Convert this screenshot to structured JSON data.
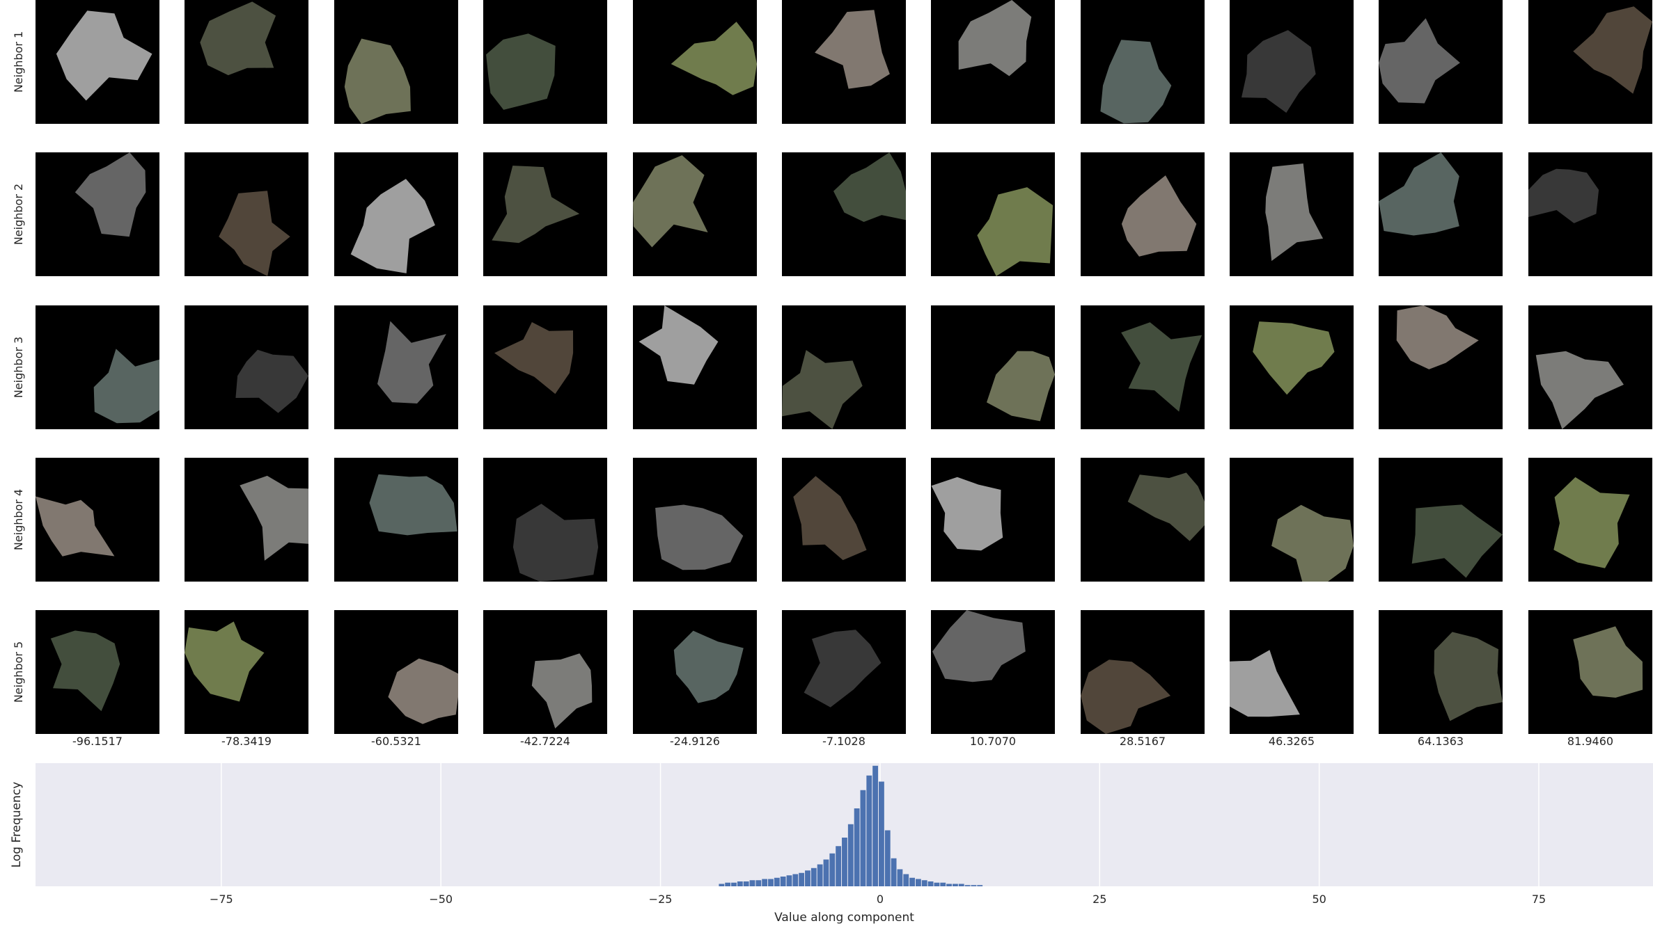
{
  "neighbor_grid": {
    "row_labels": [
      "Neighbor 1",
      "Neighbor 2",
      "Neighbor 3",
      "Neighbor 4",
      "Neighbor 5"
    ],
    "column_values": [
      "-96.1517",
      "-78.3419",
      "-60.5321",
      "-42.7224",
      "-24.9126",
      "-7.1028",
      "10.7070",
      "28.5167",
      "46.3265",
      "64.1363",
      "81.9460"
    ]
  },
  "chart_data": {
    "type": "bar",
    "xlabel": "Value along component",
    "ylabel": "Log Frequency",
    "xlim": [
      -96.1517,
      88
    ],
    "x_ticks": [
      -75,
      -50,
      -25,
      0,
      25,
      50,
      75
    ],
    "x_tick_labels": [
      "−75",
      "−50",
      "−25",
      "0",
      "25",
      "50",
      "75"
    ],
    "grid": true,
    "background": "#eaeaf2",
    "bar_color": "#4c72b0",
    "bins": [
      {
        "x": -18.0,
        "y": 0.02
      },
      {
        "x": -17.3,
        "y": 0.03
      },
      {
        "x": -16.6,
        "y": 0.03
      },
      {
        "x": -15.9,
        "y": 0.04
      },
      {
        "x": -15.2,
        "y": 0.04
      },
      {
        "x": -14.5,
        "y": 0.05
      },
      {
        "x": -13.8,
        "y": 0.05
      },
      {
        "x": -13.1,
        "y": 0.06
      },
      {
        "x": -12.4,
        "y": 0.06
      },
      {
        "x": -11.7,
        "y": 0.07
      },
      {
        "x": -11.0,
        "y": 0.08
      },
      {
        "x": -10.3,
        "y": 0.09
      },
      {
        "x": -9.6,
        "y": 0.1
      },
      {
        "x": -8.9,
        "y": 0.11
      },
      {
        "x": -8.2,
        "y": 0.13
      },
      {
        "x": -7.5,
        "y": 0.15
      },
      {
        "x": -6.8,
        "y": 0.18
      },
      {
        "x": -6.1,
        "y": 0.22
      },
      {
        "x": -5.4,
        "y": 0.27
      },
      {
        "x": -4.7,
        "y": 0.33
      },
      {
        "x": -4.0,
        "y": 0.4
      },
      {
        "x": -3.3,
        "y": 0.51
      },
      {
        "x": -2.6,
        "y": 0.64
      },
      {
        "x": -1.9,
        "y": 0.79
      },
      {
        "x": -1.2,
        "y": 0.91
      },
      {
        "x": -0.5,
        "y": 0.99
      },
      {
        "x": 0.2,
        "y": 0.86
      },
      {
        "x": 0.9,
        "y": 0.46
      },
      {
        "x": 1.6,
        "y": 0.23
      },
      {
        "x": 2.3,
        "y": 0.14
      },
      {
        "x": 3.0,
        "y": 0.1
      },
      {
        "x": 3.7,
        "y": 0.07
      },
      {
        "x": 4.4,
        "y": 0.06
      },
      {
        "x": 5.1,
        "y": 0.05
      },
      {
        "x": 5.8,
        "y": 0.04
      },
      {
        "x": 6.5,
        "y": 0.03
      },
      {
        "x": 7.2,
        "y": 0.03
      },
      {
        "x": 7.9,
        "y": 0.02
      },
      {
        "x": 8.6,
        "y": 0.02
      },
      {
        "x": 9.3,
        "y": 0.02
      },
      {
        "x": 10.0,
        "y": 0.01
      },
      {
        "x": 10.7,
        "y": 0.01
      },
      {
        "x": 11.4,
        "y": 0.01
      }
    ],
    "bin_width": 0.7
  }
}
